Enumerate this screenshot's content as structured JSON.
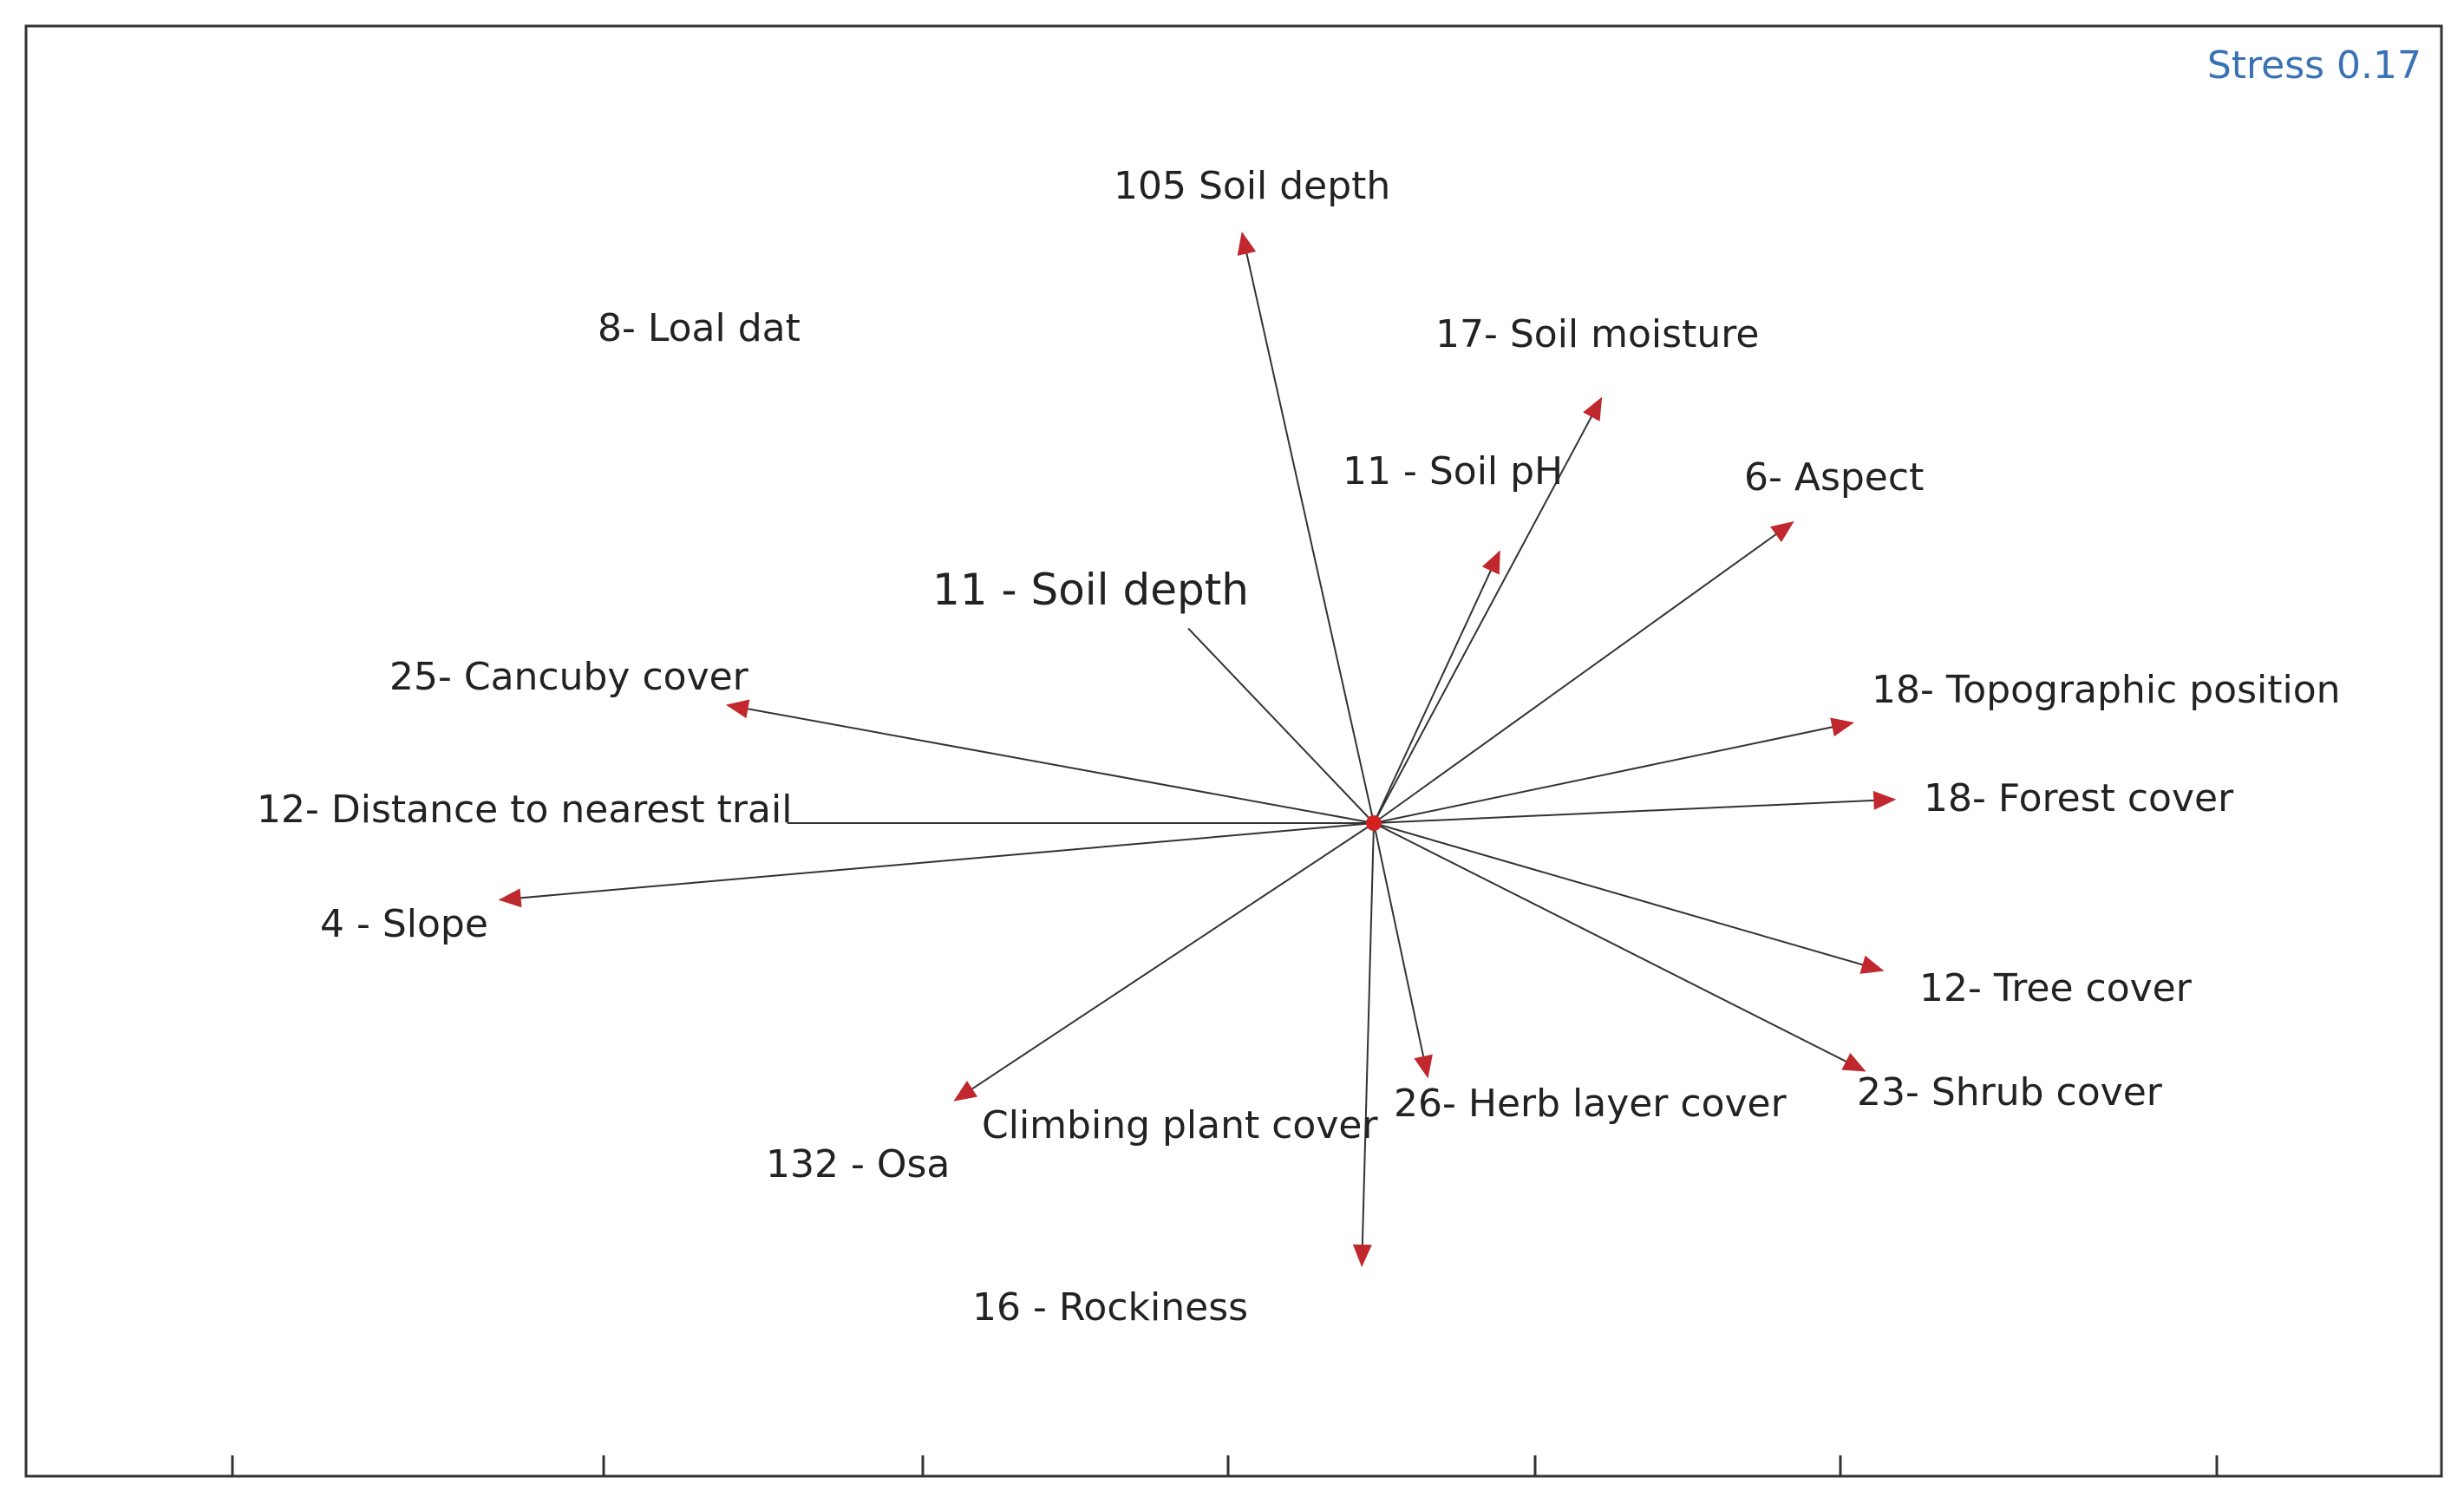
{
  "colors": {
    "frame": "#333333",
    "vector_line": "#333333",
    "arrowhead": "#c0282d",
    "origin": "#d42020",
    "stress_text": "#3a72b4",
    "label_text": "#222222"
  },
  "stress_label": "Stress 0.17",
  "chart_data": {
    "type": "scatter",
    "subtype": "ordination-biplot",
    "title": "",
    "xlabel": "",
    "ylabel": "",
    "annotations": [
      "Stress 0.17"
    ],
    "x_tick_labels": [],
    "x_tick_count": 7,
    "xlim": [
      -1.5,
      1.8
    ],
    "ylim": [
      -1.3,
      1.3
    ],
    "origin": {
      "x": 0,
      "y": 0
    },
    "vectors": [
      {
        "label": "105 Soil depth",
        "x": -0.22,
        "y": 1.0,
        "arrow": true
      },
      {
        "label": "17- Soil moisture",
        "x": 0.38,
        "y": 0.72,
        "arrow": true
      },
      {
        "label": "11 - Soil pH",
        "x": 0.21,
        "y": 0.46,
        "arrow": true
      },
      {
        "label": "6- Aspect",
        "x": 0.7,
        "y": 0.51,
        "arrow": true
      },
      {
        "label": "11 - Soil depth",
        "x": -0.31,
        "y": 0.33,
        "arrow": false
      },
      {
        "label": "25- Cancuby cover",
        "x": -1.08,
        "y": 0.2,
        "arrow": true
      },
      {
        "label": "18- Topographic position",
        "x": 0.8,
        "y": 0.17,
        "arrow": true
      },
      {
        "label": "18- Forest cover",
        "x": 0.87,
        "y": 0.04,
        "arrow": true
      },
      {
        "label": "12- Distance to nearest trail",
        "x": -0.98,
        "y": 0.0,
        "arrow": false
      },
      {
        "label": "4 - Slope",
        "x": -1.46,
        "y": -0.13,
        "arrow": true
      },
      {
        "label": "12- Tree cover",
        "x": 0.85,
        "y": -0.25,
        "arrow": true
      },
      {
        "label": "23- Shrub cover",
        "x": 0.82,
        "y": -0.42,
        "arrow": true
      },
      {
        "label": "26- Herb layer cover",
        "x": 0.09,
        "y": -0.43,
        "arrow": true
      },
      {
        "label": "16 - Rockiness",
        "x": -0.02,
        "y": -0.75,
        "arrow": true
      },
      {
        "label": "132 - Osa",
        "x": -0.7,
        "y": -0.47,
        "arrow": true
      },
      {
        "label": "Climbing plant cover",
        "x": null,
        "y": null,
        "arrow": false
      },
      {
        "label": "8- Loal dat",
        "x": null,
        "y": null,
        "arrow": false
      }
    ]
  }
}
